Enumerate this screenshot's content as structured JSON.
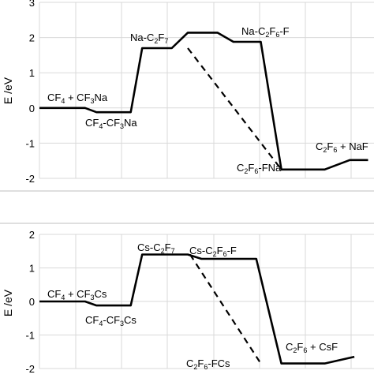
{
  "chart_data": [
    {
      "type": "line",
      "title": "",
      "xlabel": "",
      "ylabel": "E /eV",
      "ylim": [
        -2,
        3
      ],
      "yticks": [
        "3",
        "2",
        "1",
        "0",
        "-1",
        "-2"
      ],
      "grid": true,
      "series": [
        {
          "style": "solid",
          "x": [
            0,
            1,
            1.25,
            2,
            2.25,
            2.9,
            3.25,
            3.9,
            4.25,
            4.85,
            5.3,
            5.75,
            6.25,
            6.8,
            7.2
          ],
          "y": [
            0,
            0,
            -0.12,
            -0.12,
            1.7,
            1.7,
            2.14,
            2.14,
            1.88,
            1.88,
            -1.75,
            -1.75,
            -1.75,
            -1.48,
            -1.48
          ]
        },
        {
          "style": "dashed",
          "x": [
            3.25,
            5.3
          ],
          "y": [
            1.7,
            -1.75
          ]
        }
      ],
      "annotations": [
        {
          "text": "CF4 + CF3Na"
        },
        {
          "text": "CF4-CF3Na"
        },
        {
          "text": "Na-C2F7"
        },
        {
          "text": "Na-C2F6-F"
        },
        {
          "text": "C2F6-FNa"
        },
        {
          "text": "C2F6 + NaF"
        }
      ]
    },
    {
      "type": "line",
      "title": "",
      "xlabel": "",
      "ylabel": "E /eV",
      "ylim": [
        -2,
        2
      ],
      "yticks": [
        "2",
        "1",
        "0",
        "-1",
        "-2"
      ],
      "grid": true,
      "series": [
        {
          "style": "solid",
          "x": [
            0,
            1,
            1.25,
            2,
            2.25,
            3,
            3.25,
            3.55,
            4.3,
            4.75,
            5.3,
            6,
            6.25,
            6.9
          ],
          "y": [
            0,
            0,
            -0.12,
            -0.12,
            1.4,
            1.4,
            1.4,
            1.27,
            1.27,
            1.27,
            -1.85,
            -1.85,
            -1.85,
            -1.65
          ]
        },
        {
          "style": "dashed",
          "x": [
            3.3,
            4.85
          ],
          "y": [
            1.4,
            -1.85
          ]
        }
      ],
      "annotations": [
        {
          "text": "CF4 + CF3Cs"
        },
        {
          "text": "CF4-CF3Cs"
        },
        {
          "text": "Cs-C2F7"
        },
        {
          "text": "Cs-C2F6-F"
        },
        {
          "text": "C2F6-FCs"
        },
        {
          "text": "C2F6 + CsF"
        }
      ]
    }
  ]
}
